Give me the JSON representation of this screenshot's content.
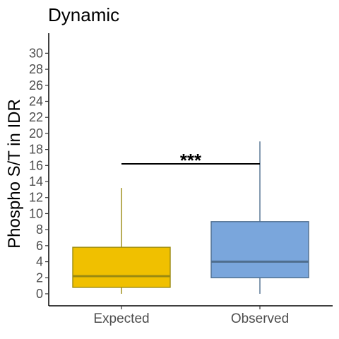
{
  "chart_data": {
    "type": "box",
    "title": "Dynamic",
    "ylabel": "Phospho S/T in IDR",
    "xlabel": "",
    "ylim": [
      -1.5,
      32.5
    ],
    "yticks": [
      0,
      2,
      4,
      6,
      8,
      10,
      12,
      14,
      16,
      18,
      20,
      22,
      24,
      26,
      28,
      30
    ],
    "categories": [
      "Expected",
      "Observed"
    ],
    "boxes": [
      {
        "category": "Expected",
        "min": 0,
        "q1": 0.8,
        "median": 2.2,
        "q3": 5.8,
        "max": 13.2,
        "fill": "#F0C000",
        "stroke": "#9A8A10"
      },
      {
        "category": "Observed",
        "min": 0,
        "q1": 2.0,
        "median": 4.0,
        "q3": 9.0,
        "max": 19.0,
        "fill": "#7AA6DC",
        "stroke": "#4F6E8E"
      }
    ],
    "significance": {
      "from": "Expected",
      "to": "Observed",
      "y": 16.2,
      "label": "***"
    },
    "grid": false
  }
}
